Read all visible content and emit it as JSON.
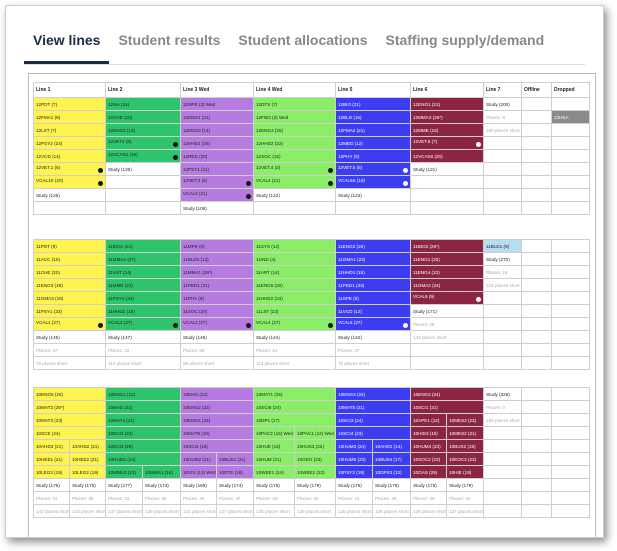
{
  "tabs": [
    "View lines",
    "Student results",
    "Student allocations",
    "Staffing supply/demand"
  ],
  "headers": [
    "Line 1",
    "Line 2",
    "Line 3 Wed",
    "Line 4 Wed",
    "Line 5",
    "Line 6",
    "Line 7",
    "Offline",
    "Dropped"
  ],
  "b1": {
    "r1": [
      "12PDT (7)",
      "12MA (24)",
      "12NPE (3) Wed",
      "12DTS (7)",
      "12BIO (21)",
      "12ENG1 (21)",
      "Study (200)"
    ],
    "r2": [
      "12FMA1 (9)",
      "12CHE (10)",
      "12ENG1 (21)",
      "12FNO (2) Wed",
      "12BLD (15)",
      "12MMA3 (26*)",
      "Places: 8",
      "12HSA"
    ],
    "r3": [
      "12LST (7)",
      "12ENG2 (13)",
      "12ENG3 (14)",
      "12ENG4 (25)",
      "12FMA2 (21)",
      "12MME (16)",
      "330 places short"
    ],
    "r4": [
      "12PSY2 (24)",
      "12VET2 (8)",
      "12HHD1 (25)",
      "12HHD2 (22)",
      "12MED (12)",
      "12VET.6 (7)"
    ],
    "r5": [
      "12VCD (14)",
      "12VCAS2 (16)",
      "12RED (20)",
      "12SOC (15)",
      "12PHY (6)",
      "12VCAS6 (20)"
    ],
    "r6": [
      "12VET.1 (6)",
      "Study (126)",
      "12PSY1 (11)",
      "12VET.4 (2)",
      "12VET.5 (6)",
      "Study (121)"
    ],
    "r7": [
      "VCAL1S (20)",
      "",
      "12VET.3 (6)",
      "VCAL4 (21)",
      "VCAL5S (18)"
    ],
    "r8": [
      "Study (125)",
      "",
      "VCAL3 (21)",
      "Study (122)",
      "Study (123)"
    ],
    "r9": [
      "",
      "",
      "Study (108)"
    ]
  },
  "b2": {
    "r1": [
      "11PDT (9)",
      "11BIO1 (21)",
      "11MPE (5)",
      "11SYS (12)",
      "11ENG2 (25)",
      "11BIO2 (26*)",
      "11BLD1 (8)"
    ],
    "r2": [
      "11ACC (10)",
      "11MMA2 (27)",
      "11BLD2 (13)",
      "11IND (4)",
      "11GMA1 (23)",
      "11ENG1 (25)",
      "Study (270)"
    ],
    "r3": [
      "11CHE (20)",
      "11HST (14)",
      "11MMA1 (26*)",
      "11ART (14)",
      "11HHD1 (15)",
      "11ENG4 (22)",
      "Places: 16"
    ],
    "r4": [
      "11ENG3 (19)",
      "11MME (22)",
      "11PED1 (21)",
      "11ENG5 (20)",
      "11PED1 (23)",
      "11GMA2 (24)",
      "122 places short"
    ],
    "r5": [
      "11GMA3 (18)",
      "11PSY2 (24)",
      "11PHY (9)",
      "11HHD2 (23)",
      "11SPE (8)",
      "VCAL6 (9)"
    ],
    "r6": [
      "11PSY1 (23)",
      "11HHD2 (15)",
      "11SOC (20)",
      "11LST (23)",
      "11VCD (12)",
      "Study (171)"
    ],
    "r7": [
      "VCAL1 (27)",
      "VCAL2 (27)",
      "VCAL3 (27)",
      "VCAL4 (27)",
      "VCAL5 (27)",
      "Places: 28"
    ],
    "r8": [
      "Study (145)",
      "Study (147)",
      "Study (146)",
      "Study (144)",
      "Study (142)",
      "143 places short"
    ],
    "r9": [
      "Places: 37",
      "Places: 32",
      "Places: 59",
      "Places: 51",
      "Places: 37"
    ],
    "r10": [
      "78 places short",
      "113 places short",
      "88 places short",
      "113 places short",
      "75 places short"
    ]
  },
  "b3": {
    "r1": [
      "10ENG5 (26)",
      "10ENG1 (22)",
      "10ENG (22)",
      "10MAT1 (25)",
      "10ENG3 (24)",
      "10ENG3 (24)",
      "Study (326)"
    ],
    "r2": [
      "10MAT2 (26*)",
      "10MAE (21)",
      "10ENG2 (22)",
      "10SCI5 (24)",
      "10MAT5 (21)",
      "10SCI1 (21)",
      "Places: 0"
    ],
    "r3": [
      "10MAT3 (23)",
      "10MAT4 (21)",
      "10ENG4 (23)",
      "10DP1 (17)",
      "10SCI3 (24)",
      "10APE1 (12)",
      "10MES3 (23)",
      "188 places short"
    ],
    "r4": [
      "10SCE (24)",
      "10SCI2 (23)",
      "10MAT6 (18)",
      "10PAC2 (16) Wed",
      "10PAC1 (12) Wed",
      "10SCI4 (23)",
      "10HIS3 (15)",
      "10MES2 (21)"
    ],
    "r5": [
      "10AHD3 (21)",
      "10AHD2 (21)",
      "10SCI3 (25)",
      "10SCI4 (18)",
      "10HUE (16)",
      "10HUS3 (22)",
      "10HUM3 (24)",
      "10AHD2 (14)",
      "10HUM4 (23)",
      "10BUS2 (19)"
    ],
    "r6": [
      "10HEE1 (21)",
      "10HEE2 (21)",
      "10HUM1 (24)",
      "10HUM2 (21)",
      "10BUS1 (21)",
      "10HUM (21)",
      "10GEO (23)",
      "10HUM5 (23)",
      "10BUS4 (17)",
      "10SOC2 (23)",
      "10EOC3 (23)"
    ],
    "r7": [
      "10LEG3 (19)",
      "10LEG2 (19)",
      "10MMA3 (23)",
      "10MMA1 (16)",
      "10VIS (13) Wed",
      "10DTE (18)",
      "10WEE1 (24)",
      "10WEE2 (22)",
      "10PSY2 (19)",
      "10DPS3 (12)",
      "10GAS (25)",
      "10HIE (19)"
    ],
    "r8": [
      "Study (175)",
      "Study (175)",
      "Study (177)",
      "Study (173)",
      "Study (169)",
      "Study (174)",
      "Study (175)",
      "Study (179)",
      "Study (175)",
      "Study (179)",
      "Study (175)",
      "Study (179)"
    ],
    "r9": [
      "Places: 34",
      "Places: 38",
      "Places: 33",
      "Places: 38",
      "Places: 45",
      "Places: 47",
      "Places: 33",
      "Places: 32",
      "Places: 41",
      "Places: 48",
      "Places: 39",
      "Places: 42"
    ],
    "r10": [
      "143 places short",
      "143 places short",
      "137 places short",
      "138 places short",
      "131 places short",
      "127 places short",
      "138 places short",
      "136 places short",
      "135 places short",
      "136 places short",
      "136 places short",
      "137 places short"
    ]
  }
}
